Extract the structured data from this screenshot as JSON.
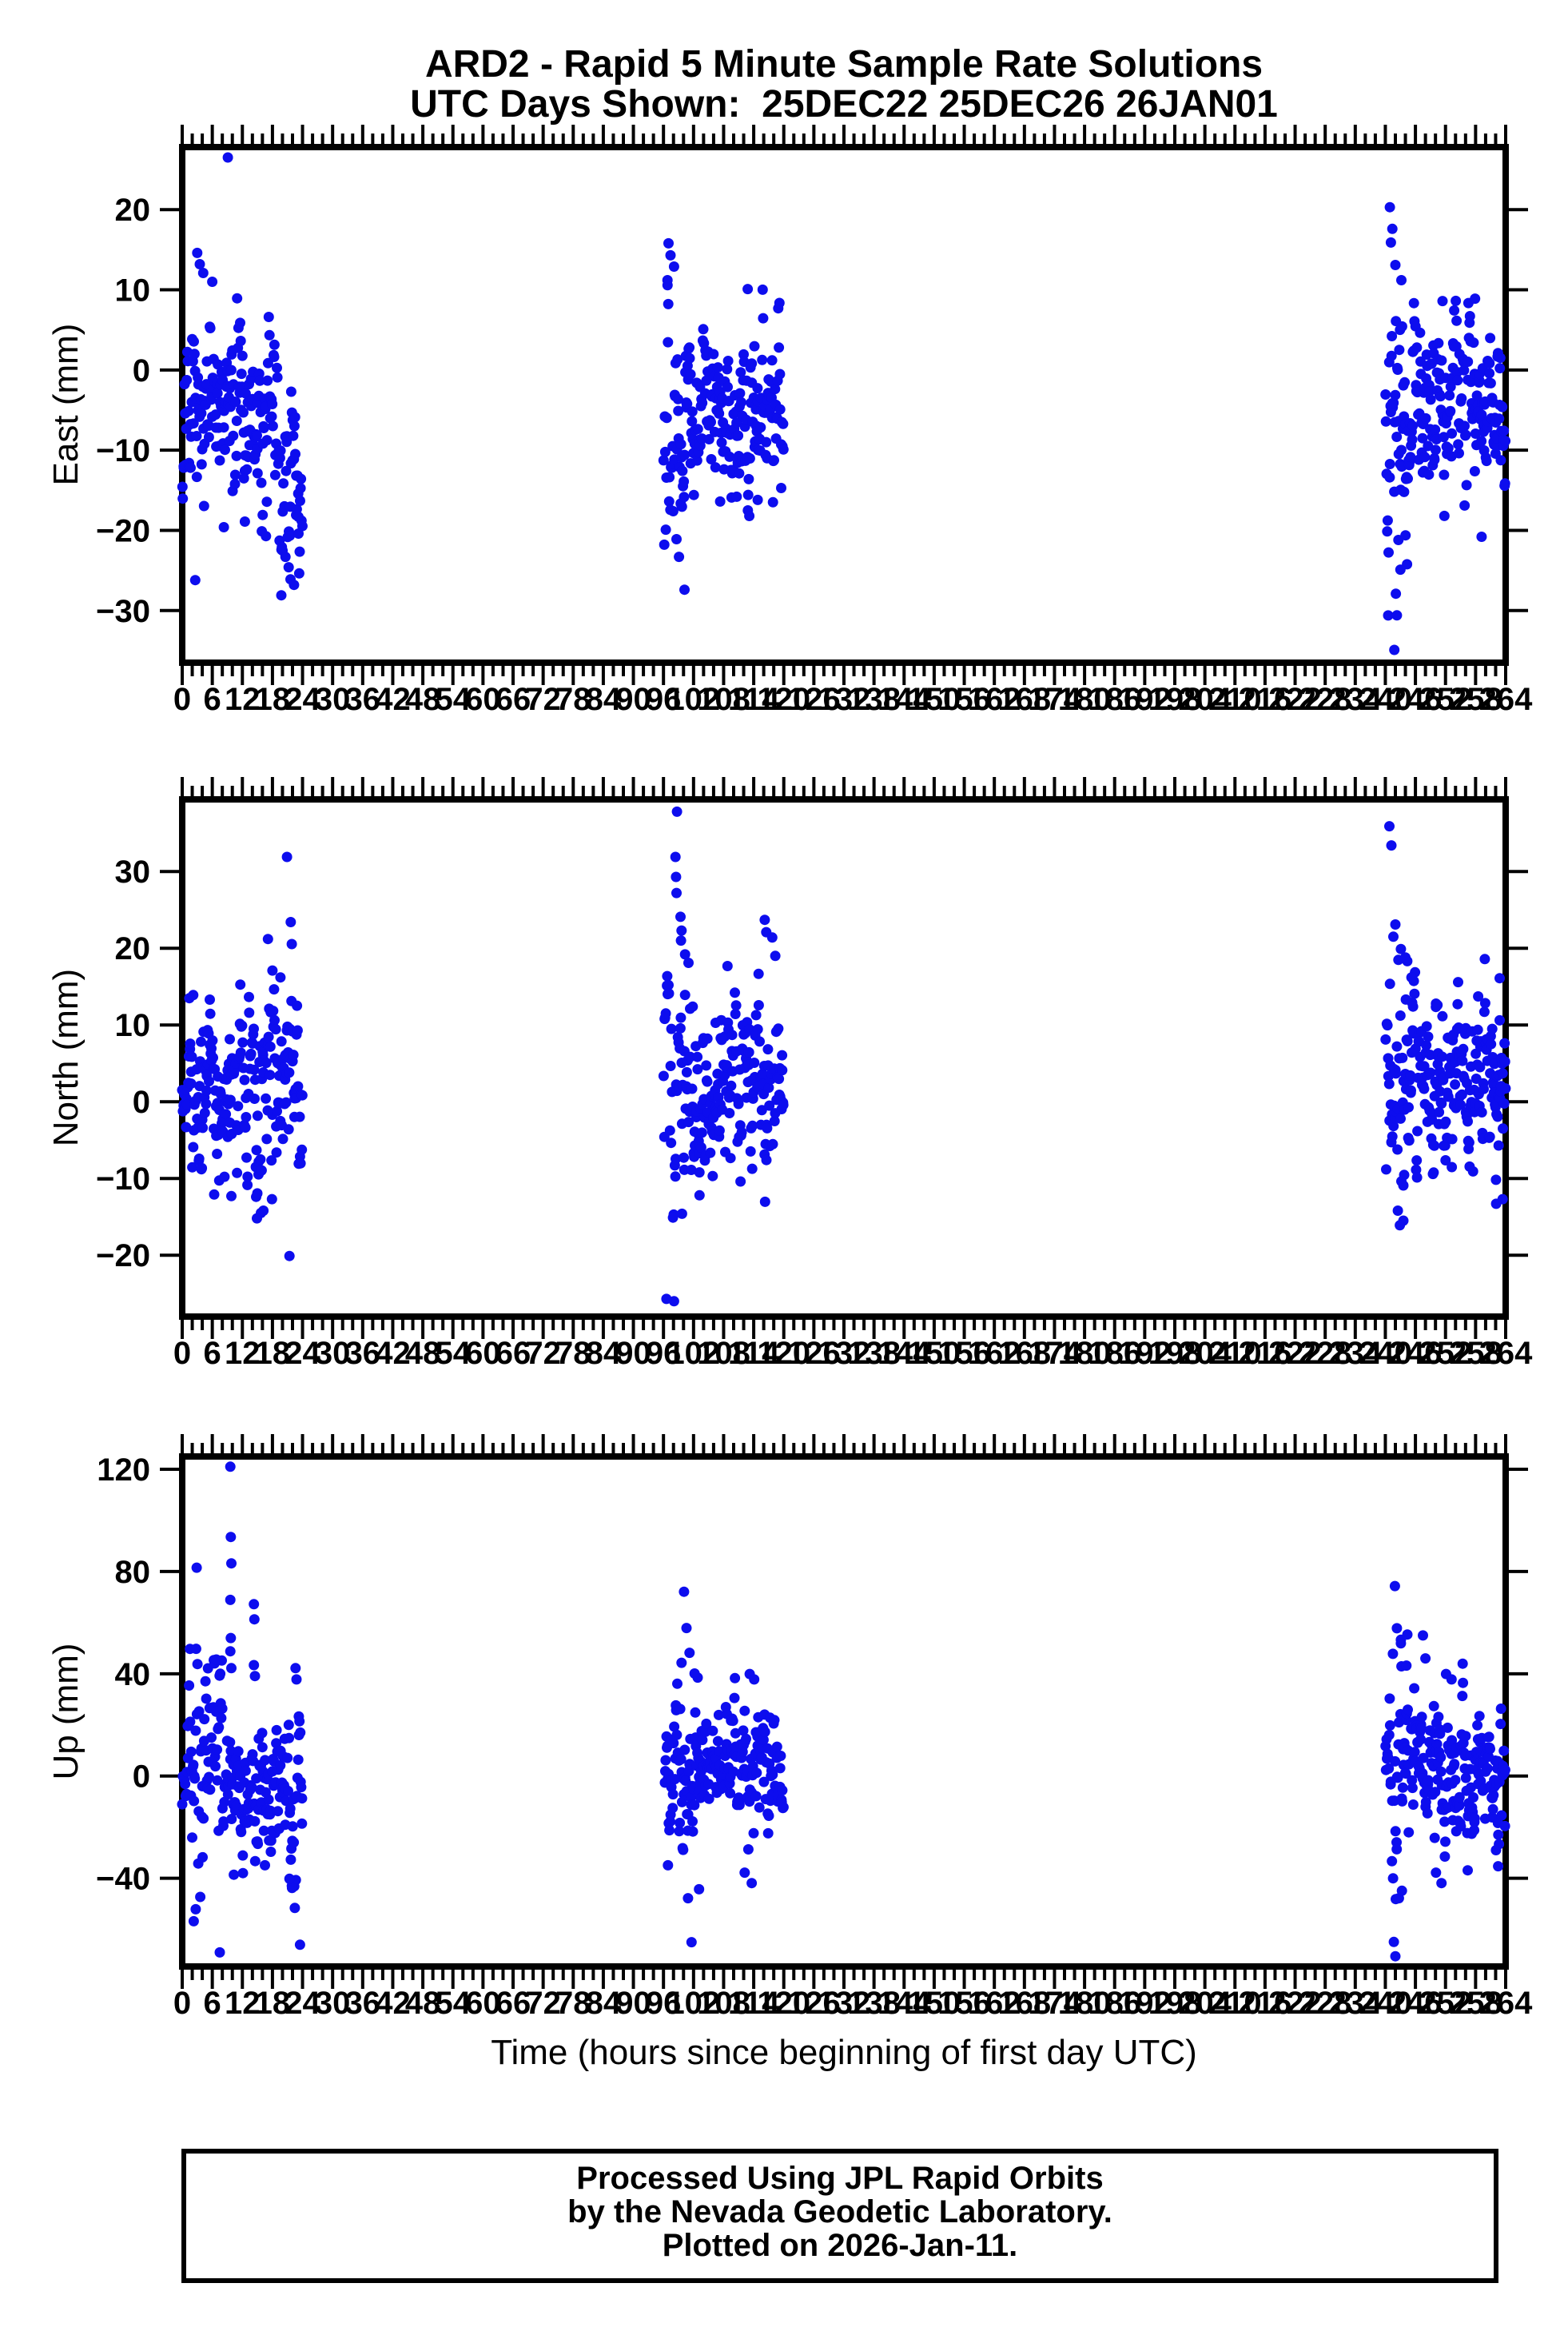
{
  "title": {
    "line1": "ARD2 - Rapid 5 Minute Sample Rate Solutions",
    "line2": "UTC Days Shown:  25DEC22 25DEC26 26JAN01"
  },
  "footer": {
    "lines": [
      "Processed Using JPL Rapid Orbits",
      "by the Nevada Geodetic Laboratory.",
      "Plotted on 2026-Jan-11."
    ]
  },
  "colors": {
    "dot": "#0d0dee",
    "axis": "#000000",
    "text": "#000000",
    "background": "#ffffff"
  },
  "chart_data": {
    "type": "scatter",
    "title": "ARD2 - Rapid 5 Minute Sample Rate Solutions",
    "subtitle": "UTC Days Shown:  25DEC22 25DEC26 26JAN01",
    "xlabel": "Time (hours since beginning of first day UTC)",
    "xlim": [
      0,
      264
    ],
    "x_major_tick": 6,
    "x_minor_tick": 2,
    "x_tick_labels": [
      "0",
      "6",
      "12",
      "18",
      "24",
      "30",
      "36",
      "42",
      "48",
      "54",
      "60",
      "66",
      "72",
      "78",
      "84",
      "90",
      "96",
      "102",
      "108",
      "114",
      "120",
      "126",
      "132",
      "138",
      "144",
      "150",
      "156",
      "162",
      "168",
      "174",
      "180",
      "186",
      "192",
      "198",
      "204",
      "210",
      "216",
      "222",
      "228",
      "234",
      "240",
      "246",
      "252",
      "258",
      "264"
    ],
    "utc_days": [
      "25DEC22",
      "25DEC26",
      "26JAN01"
    ],
    "day_windows_hours": [
      [
        0,
        24
      ],
      [
        96,
        120
      ],
      [
        240,
        264
      ]
    ],
    "marker": {
      "shape": "circle",
      "radius_px": 6.5
    },
    "grid": false,
    "legend": null,
    "seed": 20260111,
    "panels": [
      {
        "name": "East",
        "ylabel": "East (mm)",
        "ylim": [
          -36.5,
          27.8
        ],
        "yticks": [
          {
            "v": 20,
            "label": "20"
          },
          {
            "v": 10,
            "label": "10"
          },
          {
            "v": 0,
            "label": "0"
          },
          {
            "v": -10,
            "label": "−10"
          },
          {
            "v": -20,
            "label": "−20"
          },
          {
            "v": -30,
            "label": "−30"
          }
        ],
        "clusters": [
          {
            "t": [
              0,
              24
            ],
            "n": 230,
            "mean": -4.2,
            "sd": 5.2,
            "bursts": [
              {
                "t": [
                  18.5,
                  24
                ],
                "bias": -7,
                "sd": 6.5
              },
              {
                "t": [
                  0,
                  3
                ],
                "bias": -2,
                "sd": 7
              }
            ],
            "outliers": [
              [
                9.1,
                26.5
              ],
              [
                3.0,
                14.6
              ],
              [
                3.5,
                13.2
              ],
              [
                4.2,
                12.1
              ],
              [
                6.0,
                11.0
              ],
              [
                2.6,
                -26.2
              ],
              [
                19.8,
                -22.4
              ],
              [
                20.6,
                -23.3
              ],
              [
                21.6,
                -26.1
              ],
              [
                22.3,
                -26.8
              ],
              [
                8.3,
                -19.6
              ],
              [
                12.5,
                -18.9
              ],
              [
                23.2,
                -20.4
              ]
            ]
          },
          {
            "t": [
              96,
              120
            ],
            "n": 230,
            "mean": -3.6,
            "sd": 5.0,
            "bursts": [
              {
                "t": [
                  96,
                  101
                ],
                "bias": -1,
                "sd": 7.5
              }
            ],
            "outliers": [
              [
                97.0,
                15.8
              ],
              [
                97.4,
                14.3
              ],
              [
                98.1,
                12.9
              ],
              [
                96.8,
                11.2
              ],
              [
                100.2,
                -27.4
              ],
              [
                99.1,
                -23.3
              ],
              [
                98.6,
                -21.1
              ],
              [
                107.3,
                -16.4
              ],
              [
                112.8,
                10.1
              ],
              [
                114.8,
                -16.2
              ],
              [
                110.6,
                -15.8
              ]
            ]
          },
          {
            "t": [
              240,
              264
            ],
            "n": 245,
            "mean": -4.0,
            "sd": 5.2,
            "bursts": [
              {
                "t": [
                  240,
                  244.5
                ],
                "bias": -2,
                "sd": 8
              }
            ],
            "outliers": [
              [
                240.9,
                20.3
              ],
              [
                241.4,
                17.6
              ],
              [
                241.1,
                15.9
              ],
              [
                242.0,
                13.1
              ],
              [
                243.2,
                11.2
              ],
              [
                241.8,
                -34.9
              ],
              [
                242.3,
                -30.6
              ],
              [
                242.1,
                -27.9
              ],
              [
                243.0,
                -24.9
              ],
              [
                242.6,
                -21.2
              ],
              [
                257.9,
                8.9
              ],
              [
                259.2,
                -20.8
              ],
              [
                255.8,
                -16.9
              ],
              [
                251.4,
                8.6
              ]
            ]
          }
        ]
      },
      {
        "name": "North",
        "ylabel": "North (mm)",
        "ylim": [
          -28.0,
          39.4
        ],
        "yticks": [
          {
            "v": 30,
            "label": "30"
          },
          {
            "v": 20,
            "label": "20"
          },
          {
            "v": 10,
            "label": "10"
          },
          {
            "v": 0,
            "label": "0"
          },
          {
            "v": -10,
            "label": "−10"
          },
          {
            "v": -20,
            "label": "−20"
          }
        ],
        "clusters": [
          {
            "t": [
              0,
              24
            ],
            "n": 230,
            "mean": 2.6,
            "sd": 5.6,
            "bursts": [
              {
                "t": [
                  14.5,
                  22
                ],
                "bias": 0,
                "sd": 7.5
              }
            ],
            "outliers": [
              [
                20.9,
                31.9
              ],
              [
                17.1,
                21.2
              ],
              [
                18.0,
                17.1
              ],
              [
                19.6,
                16.2
              ],
              [
                2.2,
                13.9
              ],
              [
                21.4,
                -20.1
              ],
              [
                14.9,
                -15.2
              ],
              [
                16.2,
                -14.2
              ],
              [
                9.8,
                -12.3
              ],
              [
                5.5,
                13.3
              ]
            ]
          },
          {
            "t": [
              96,
              120
            ],
            "n": 230,
            "mean": 1.8,
            "sd": 5.4,
            "bursts": [
              {
                "t": [
                  96,
                  103
                ],
                "bias": 2,
                "sd": 8
              }
            ],
            "outliers": [
              [
                98.7,
                37.8
              ],
              [
                98.4,
                31.9
              ],
              [
                98.5,
                29.3
              ],
              [
                98.6,
                27.2
              ],
              [
                99.4,
                24.1
              ],
              [
                99.6,
                22.3
              ],
              [
                99.5,
                21.0
              ],
              [
                100.3,
                19.2
              ],
              [
                101.0,
                18.1
              ],
              [
                116.2,
                23.7
              ],
              [
                116.5,
                22.1
              ],
              [
                117.7,
                21.4
              ],
              [
                118.3,
                19.0
              ],
              [
                96.6,
                -25.7
              ],
              [
                97.9,
                -15.1
              ],
              [
                99.7,
                -14.6
              ],
              [
                103.2,
                -12.2
              ]
            ]
          },
          {
            "t": [
              240,
              264
            ],
            "n": 245,
            "mean": 2.4,
            "sd": 5.6,
            "bursts": [
              {
                "t": [
                  240,
                  246
                ],
                "bias": 2,
                "sd": 7.5
              }
            ],
            "outliers": [
              [
                240.8,
                35.9
              ],
              [
                241.2,
                33.4
              ],
              [
                242.0,
                23.1
              ],
              [
                241.6,
                21.5
              ],
              [
                243.1,
                19.9
              ],
              [
                244.0,
                18.8
              ],
              [
                245.2,
                16.2
              ],
              [
                242.5,
                -14.2
              ],
              [
                243.6,
                -15.5
              ],
              [
                242.9,
                -16.1
              ],
              [
                262.8,
                16.1
              ],
              [
                262.1,
                -13.3
              ],
              [
                250.4,
                12.6
              ],
              [
                263.4,
                -12.7
              ]
            ]
          }
        ]
      },
      {
        "name": "Up",
        "ylabel": "Up (mm)",
        "ylim": [
          -74.5,
          125.0
        ],
        "yticks": [
          {
            "v": 120,
            "label": "120"
          },
          {
            "v": 80,
            "label": "80"
          },
          {
            "v": 40,
            "label": "40"
          },
          {
            "v": 0,
            "label": "0"
          },
          {
            "v": -40,
            "label": "−40"
          }
        ],
        "clusters": [
          {
            "t": [
              0,
              24
            ],
            "n": 230,
            "mean": -2,
            "sd": 13,
            "bursts": [
              {
                "t": [
                  1.5,
                  8
                ],
                "bias": -2,
                "sd": 24
              },
              {
                "t": [
                  19,
                  24
                ],
                "bias": -6,
                "sd": 17
              }
            ],
            "outliers": [
              [
                9.6,
                121.0
              ],
              [
                9.7,
                93.5
              ],
              [
                9.8,
                83.2
              ],
              [
                9.6,
                68.9
              ],
              [
                14.3,
                67.2
              ],
              [
                14.4,
                61.3
              ],
              [
                9.7,
                54.0
              ],
              [
                9.6,
                48.8
              ],
              [
                9.8,
                42.2
              ],
              [
                14.3,
                43.4
              ],
              [
                14.5,
                39.1
              ],
              [
                22.6,
                42.2
              ],
              [
                22.8,
                37.8
              ],
              [
                2.3,
                -56.8
              ],
              [
                2.7,
                -52.1
              ],
              [
                3.6,
                -47.3
              ],
              [
                21.9,
                -43.8
              ],
              [
                21.4,
                -40.2
              ],
              [
                10.3,
                -38.6
              ],
              [
                16.5,
                -34.9
              ],
              [
                7.5,
                -69.0
              ],
              [
                23.5,
                -66.0
              ]
            ]
          },
          {
            "t": [
              96,
              120
            ],
            "n": 230,
            "mean": 1.5,
            "sd": 13,
            "bursts": [
              {
                "t": [
                  99,
                  104
                ],
                "bias": 0,
                "sd": 20
              }
            ],
            "outliers": [
              [
                100.1,
                72.1
              ],
              [
                100.6,
                57.9
              ],
              [
                101.2,
                48.2
              ],
              [
                99.6,
                44.3
              ],
              [
                102.2,
                40.1
              ],
              [
                113.2,
                39.9
              ],
              [
                114.1,
                37.8
              ],
              [
                101.6,
                -65.0
              ],
              [
                100.9,
                -47.8
              ],
              [
                103.1,
                -44.3
              ],
              [
                113.6,
                -41.9
              ],
              [
                112.2,
                -37.8
              ],
              [
                96.9,
                -34.9
              ]
            ]
          },
          {
            "t": [
              240,
              264
            ],
            "n": 245,
            "mean": 2.5,
            "sd": 13,
            "bursts": [
              {
                "t": [
                  240,
                  246
                ],
                "bias": 2,
                "sd": 20
              }
            ],
            "outliers": [
              [
                241.9,
                74.3
              ],
              [
                242.3,
                57.8
              ],
              [
                243.1,
                51.9
              ],
              [
                241.5,
                47.8
              ],
              [
                244.2,
                43.2
              ],
              [
                252.1,
                39.9
              ],
              [
                253.2,
                37.8
              ],
              [
                241.7,
                -64.9
              ],
              [
                242.0,
                -70.5
              ],
              [
                242.7,
                -47.8
              ],
              [
                243.3,
                -44.9
              ],
              [
                251.2,
                -41.9
              ],
              [
                250.1,
                -37.8
              ],
              [
                262.5,
                -35.3
              ],
              [
                247.5,
                55.0
              ],
              [
                248.0,
                46.0
              ]
            ]
          }
        ]
      }
    ]
  }
}
